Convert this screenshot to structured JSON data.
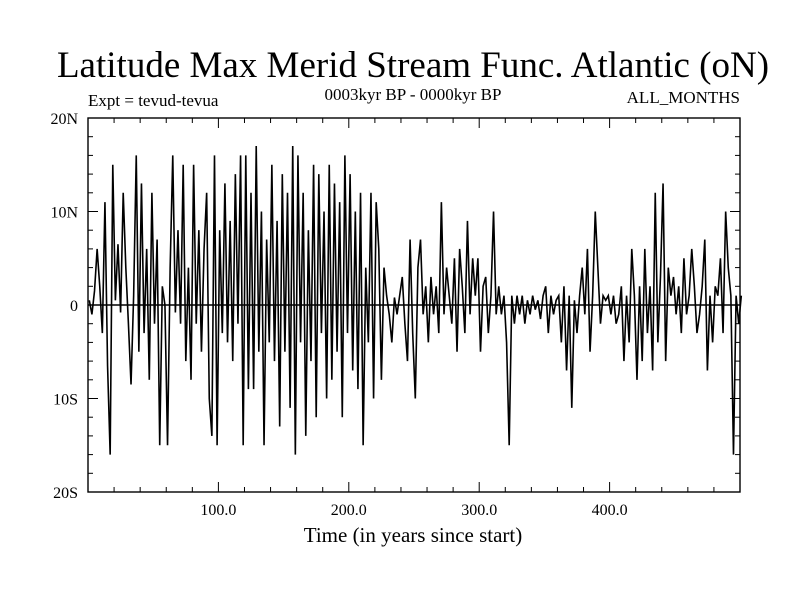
{
  "chart_data": {
    "type": "line",
    "title": "Latitude Max Merid Stream Func. Atlantic (oN)",
    "subtitle_left": "Expt = tevud-tevua",
    "subtitle_center": "0003kyr BP - 0000kyr BP",
    "subtitle_right": "ALL_MONTHS",
    "xlabel": "Time (in years since start)",
    "ylabel": "",
    "xlim": [
      0,
      500
    ],
    "ylim": [
      -20,
      20
    ],
    "x_ticks": [
      {
        "value": 100,
        "label": "100.0"
      },
      {
        "value": 200,
        "label": "200.0"
      },
      {
        "value": 300,
        "label": "300.0"
      },
      {
        "value": 400,
        "label": "400.0"
      }
    ],
    "y_ticks": [
      {
        "value": 20,
        "label": "20N"
      },
      {
        "value": 10,
        "label": "10N"
      },
      {
        "value": 0,
        "label": "0"
      },
      {
        "value": -10,
        "label": "10S"
      },
      {
        "value": -20,
        "label": "20S"
      }
    ],
    "zero_line": true,
    "series": [
      {
        "name": "tevud-tevua",
        "x_start": 1,
        "x_step": 2,
        "values": [
          0.5,
          -1.0,
          1.5,
          6.0,
          2.0,
          -3.0,
          11.0,
          -6.5,
          -16.0,
          15.0,
          0.5,
          6.5,
          -0.8,
          12.0,
          4.0,
          -2.0,
          -8.5,
          1.0,
          16.0,
          -5.0,
          13.0,
          -3.0,
          6.0,
          -8.0,
          12.0,
          -2.0,
          7.0,
          -15.0,
          2.0,
          0.0,
          -15.0,
          4.0,
          16.0,
          -0.8,
          8.0,
          -2.0,
          15.0,
          -6.0,
          4.0,
          -8.0,
          15.0,
          -2.0,
          8.0,
          -5.0,
          6.0,
          12.0,
          -10.0,
          -14.0,
          16.0,
          -15.0,
          8.0,
          -3.0,
          13.0,
          -4.0,
          9.0,
          -6.0,
          14.0,
          -2.0,
          16.0,
          -15.0,
          16.0,
          -9.0,
          12.0,
          -9.0,
          17.0,
          -5.0,
          10.0,
          -15.0,
          7.0,
          -4.0,
          15.0,
          -6.0,
          9.0,
          -13.0,
          14.0,
          -5.0,
          12.0,
          -11.0,
          17.0,
          -16.0,
          16.0,
          -4.0,
          12.0,
          -14.0,
          8.0,
          -6.0,
          15.0,
          -12.0,
          14.0,
          -3.0,
          10.0,
          -10.0,
          15.0,
          -8.0,
          13.0,
          -5.0,
          11.0,
          -12.0,
          16.0,
          -3.0,
          14.0,
          -7.0,
          10.0,
          -9.0,
          12.0,
          -15.0,
          4.0,
          -4.0,
          12.0,
          -10.0,
          11.0,
          6.0,
          -8.0,
          4.0,
          1.0,
          -1.0,
          -4.0,
          0.8,
          -1.0,
          1.0,
          3.0,
          -2.0,
          -6.0,
          7.0,
          -3.0,
          -10.0,
          4.0,
          7.0,
          -1.0,
          2.0,
          -4.0,
          3.0,
          -1.0,
          2.0,
          -3.0,
          11.0,
          -1.0,
          4.0,
          1.0,
          -2.0,
          5.0,
          -5.0,
          6.0,
          2.0,
          -3.0,
          9.0,
          -1.0,
          5.0,
          1.0,
          5.0,
          -5.0,
          2.0,
          3.0,
          -3.0,
          1.0,
          10.0,
          -1.0,
          2.0,
          -1.0,
          1.0,
          -4.0,
          -15.0,
          1.0,
          -2.0,
          1.0,
          -1.0,
          1.0,
          -2.0,
          0.5,
          -1.0,
          1.0,
          -0.5,
          0.5,
          -1.5,
          1.0,
          2.0,
          -3.0,
          1.0,
          -1.0,
          0.5,
          1.0,
          -4.0,
          2.0,
          -7.0,
          1.0,
          -11.0,
          0.5,
          -3.0,
          1.0,
          4.0,
          -1.0,
          6.0,
          -5.0,
          1.0,
          10.0,
          4.0,
          -2.0,
          1.0,
          0.5,
          1.0,
          -1.0,
          1.0,
          -2.0,
          -1.0,
          2.0,
          -6.0,
          1.0,
          -4.0,
          6.0,
          1.0,
          -8.0,
          2.0,
          -6.0,
          6.0,
          -3.0,
          2.0,
          -7.0,
          12.0,
          -4.0,
          3.0,
          13.0,
          -6.0,
          4.0,
          1.0,
          3.0,
          -1.0,
          2.0,
          -3.0,
          5.0,
          -1.0,
          1.0,
          6.0,
          2.0,
          -3.0,
          -1.0,
          2.0,
          7.0,
          -7.0,
          1.0,
          -4.0,
          2.0,
          1.0,
          5.0,
          -3.0,
          10.0,
          4.0,
          1.0,
          -16.0,
          1.0,
          -2.0,
          1.0
        ]
      }
    ]
  }
}
